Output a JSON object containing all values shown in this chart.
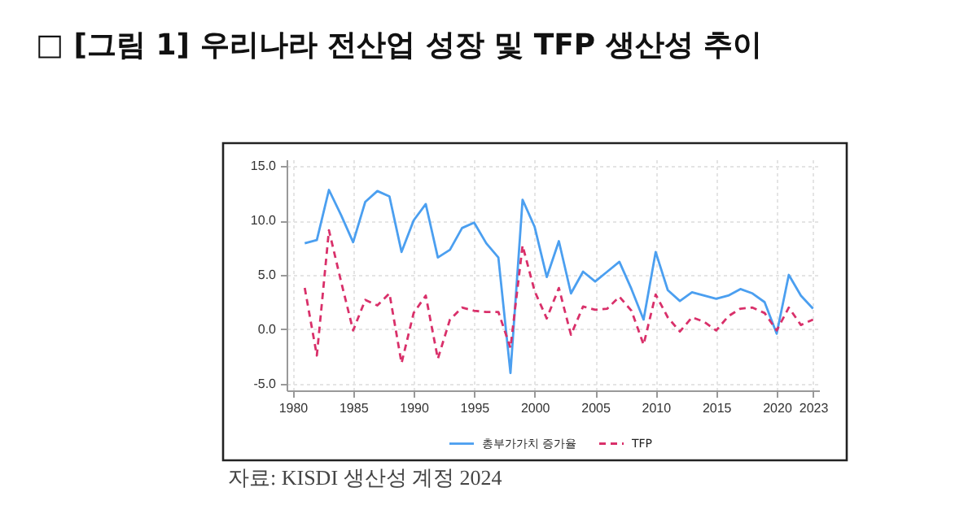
{
  "chart_data": {
    "type": "line",
    "title": "□ [그림 1] 우리나라 전산업 성장 및 TFP 생산성 추이",
    "x": [
      1981,
      1982,
      1983,
      1984,
      1985,
      1986,
      1987,
      1988,
      1989,
      1990,
      1991,
      1992,
      1993,
      1994,
      1995,
      1996,
      1997,
      1998,
      1999,
      2000,
      2001,
      2002,
      2003,
      2004,
      2005,
      2006,
      2007,
      2008,
      2009,
      2010,
      2011,
      2012,
      2013,
      2014,
      2015,
      2016,
      2017,
      2018,
      2019,
      2020,
      2021,
      2022,
      2023
    ],
    "series": [
      {
        "name": "총부가가치 증가율",
        "color": "#4b9ff0",
        "line_style": "solid",
        "values": [
          7.9,
          8.2,
          12.8,
          10.5,
          8.0,
          11.7,
          12.7,
          12.2,
          7.1,
          10.0,
          11.5,
          6.6,
          7.3,
          9.3,
          9.8,
          7.9,
          6.6,
          -4.0,
          11.9,
          9.4,
          4.8,
          8.1,
          3.3,
          5.3,
          4.4,
          5.3,
          6.2,
          3.7,
          0.9,
          7.1,
          3.6,
          2.6,
          3.4,
          3.1,
          2.8,
          3.1,
          3.7,
          3.3,
          2.5,
          -0.4,
          5.0,
          3.1,
          1.9
        ]
      },
      {
        "name": "TFP",
        "color": "#d9306a",
        "line_style": "dashed",
        "values": [
          3.8,
          -2.4,
          9.1,
          4.4,
          -0.1,
          2.7,
          2.2,
          3.3,
          -3.1,
          1.5,
          3.1,
          -2.7,
          0.9,
          2.0,
          1.7,
          1.6,
          1.6,
          -1.7,
          7.7,
          3.5,
          1.0,
          3.8,
          -0.5,
          2.1,
          1.8,
          1.9,
          3.0,
          1.7,
          -1.4,
          3.2,
          1.1,
          -0.2,
          1.1,
          0.7,
          -0.1,
          1.2,
          1.9,
          2.0,
          1.5,
          -0.1,
          2.0,
          0.4,
          0.9
        ]
      }
    ],
    "xlim": [
      1979.5,
      2023.5
    ],
    "xticks": [
      1980,
      1985,
      1990,
      1995,
      2000,
      2005,
      2010,
      2015,
      2020,
      2023
    ],
    "ylim": [
      -5.6,
      15.6
    ],
    "yticks": [
      {
        "value": -5,
        "label": "-5.0"
      },
      {
        "value": 0,
        "label": "0.0"
      },
      {
        "value": 5,
        "label": "5.0"
      },
      {
        "value": 10,
        "label": "10.0"
      },
      {
        "value": 15,
        "label": "15.0"
      }
    ],
    "grid": true,
    "legend": "bottom",
    "annotations": [
      "자료: KISDI 생산성 계정 2024"
    ]
  }
}
